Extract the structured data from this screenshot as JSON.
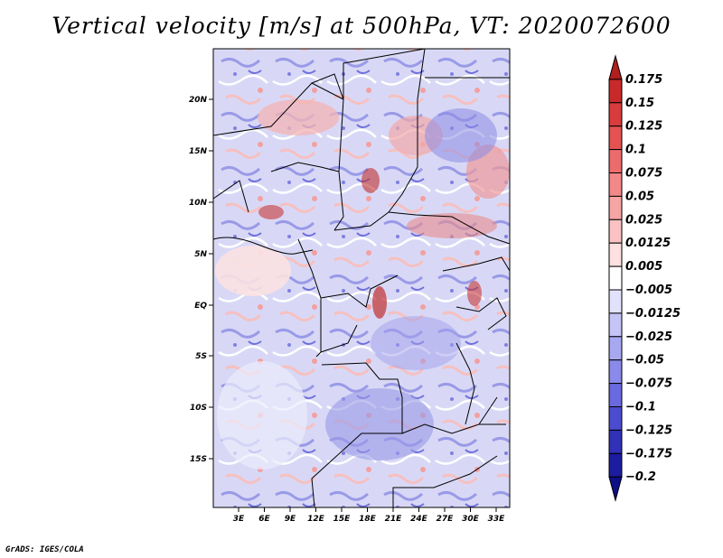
{
  "title": "Vertical velocity [m/s] at 500hPa, VT: 2020072600",
  "credit": "GrADS: IGES/COLA",
  "map": {
    "lat_ticks": [
      "20N",
      "15N",
      "10N",
      "5N",
      "EQ",
      "5S",
      "10S",
      "15S"
    ],
    "lon_ticks": [
      "3E",
      "6E",
      "9E",
      "12E",
      "15E",
      "18E",
      "21E",
      "24E",
      "27E",
      "30E",
      "33E"
    ],
    "background_color": "#ffffff",
    "border_color": "#000000"
  },
  "colorbar": {
    "levels": [
      "0.175",
      "0.15",
      "0.125",
      "0.1",
      "0.075",
      "0.05",
      "0.025",
      "0.0125",
      "0.005",
      "−0.005",
      "−0.0125",
      "−0.025",
      "−0.05",
      "−0.075",
      "−0.1",
      "−0.125",
      "−0.175",
      "−0.2"
    ],
    "colors": [
      "#b01e1e",
      "#c82a2a",
      "#d83c3c",
      "#e45252",
      "#ec6c6c",
      "#f28888",
      "#f6a4a4",
      "#fac2c2",
      "#fde0e0",
      "#ffffff",
      "#e2e2fc",
      "#c4c4f6",
      "#a8a8f0",
      "#8a8aea",
      "#6a6ae0",
      "#4c4cd0",
      "#3030b8",
      "#1c1ca0",
      "#0e0e86"
    ]
  }
}
